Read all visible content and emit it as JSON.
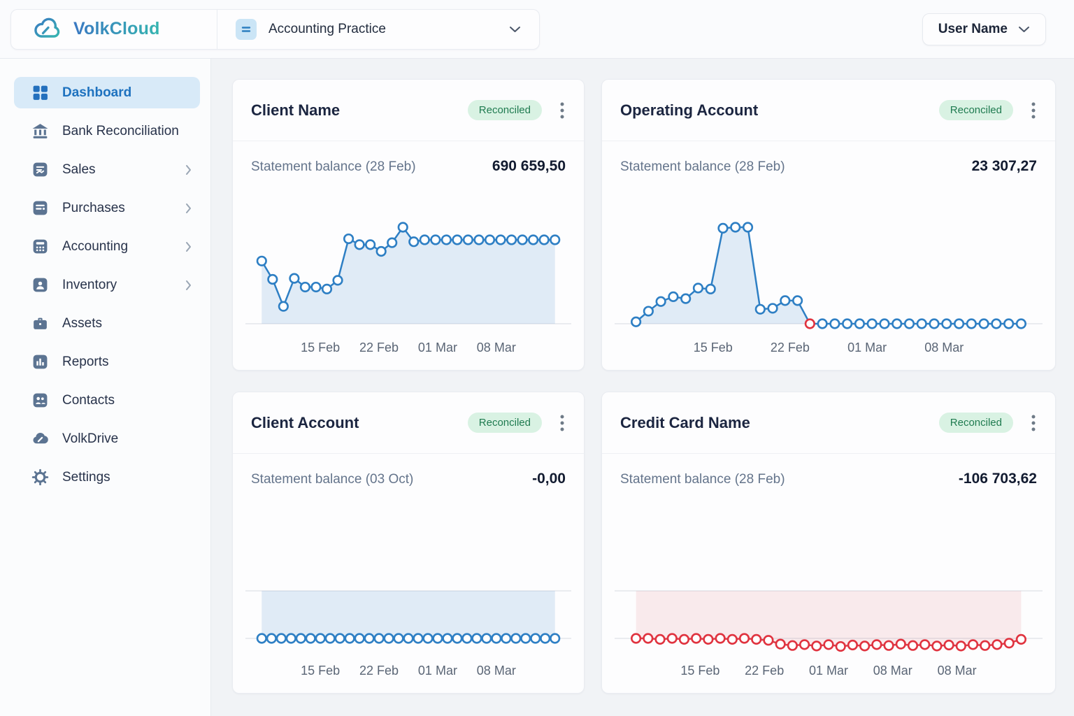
{
  "brand": {
    "name": "VolkCloud"
  },
  "header": {
    "practice_selector": {
      "label": "Accounting Practice"
    },
    "user_menu": {
      "label": "User Name"
    }
  },
  "sidebar": {
    "items": [
      {
        "label": "Dashboard",
        "icon": "dashboard",
        "active": true,
        "expandable": false
      },
      {
        "label": "Bank Reconciliation",
        "icon": "bank",
        "active": false,
        "expandable": false
      },
      {
        "label": "Sales",
        "icon": "sales",
        "active": false,
        "expandable": true
      },
      {
        "label": "Purchases",
        "icon": "purchases",
        "active": false,
        "expandable": true
      },
      {
        "label": "Accounting",
        "icon": "accounting",
        "active": false,
        "expandable": true
      },
      {
        "label": "Inventory",
        "icon": "inventory",
        "active": false,
        "expandable": true
      },
      {
        "label": "Assets",
        "icon": "assets",
        "active": false,
        "expandable": false
      },
      {
        "label": "Reports",
        "icon": "reports",
        "active": false,
        "expandable": false
      },
      {
        "label": "Contacts",
        "icon": "contacts",
        "active": false,
        "expandable": false
      },
      {
        "label": "VolkDrive",
        "icon": "volkdrive",
        "active": false,
        "expandable": false
      },
      {
        "label": "Settings",
        "icon": "settings",
        "active": false,
        "expandable": false
      }
    ]
  },
  "colors": {
    "accent_blue": "#1e72bf",
    "chart_blue": "#2e7fc4",
    "chart_blue_fill": "rgba(47,127,196,0.14)",
    "chart_red": "#dd3b48",
    "chart_red_fill": "rgba(216,64,76,0.10)",
    "badge_bg": "#d9f2e3",
    "badge_text": "#1f7b50",
    "axis_gray": "#e3e7ec"
  },
  "cards": [
    {
      "title": "Client Name",
      "badge": "Reconciled",
      "statement_label": "Statement balance (28 Feb)",
      "statement_value": "690 659,50",
      "chart": {
        "type": "line",
        "mode": "positive",
        "color": "#2e7fc4",
        "fill": "rgba(47,127,196,0.14)",
        "x_labels": [
          "15 Feb",
          "22 Feb",
          "01 Mar",
          "08 Mar"
        ],
        "values": [
          0.65,
          0.46,
          0.18,
          0.47,
          0.38,
          0.38,
          0.36,
          0.45,
          0.88,
          0.82,
          0.82,
          0.75,
          0.84,
          1.0,
          0.85,
          0.87,
          0.87,
          0.87,
          0.87,
          0.87,
          0.87,
          0.87,
          0.87,
          0.87,
          0.87,
          0.87,
          0.87,
          0.87
        ],
        "red_points": []
      }
    },
    {
      "title": "Operating Account",
      "badge": "Reconciled",
      "statement_label": "Statement balance (28 Feb)",
      "statement_value": "23 307,27",
      "chart": {
        "type": "line",
        "mode": "positive",
        "color": "#2e7fc4",
        "fill": "rgba(47,127,196,0.14)",
        "x_labels": [
          "15 Feb",
          "22 Feb",
          "01 Mar",
          "08 Mar"
        ],
        "values": [
          0.02,
          0.13,
          0.23,
          0.28,
          0.26,
          0.37,
          0.36,
          0.99,
          1.0,
          1.0,
          0.15,
          0.16,
          0.24,
          0.24,
          0,
          0,
          0,
          0,
          0,
          0,
          0,
          0,
          0,
          0,
          0,
          0,
          0,
          0,
          0,
          0,
          0,
          0
        ],
        "red_points": [
          14
        ]
      }
    },
    {
      "title": "Client Account",
      "badge": "Reconciled",
      "statement_label": "Statement balance (03 Oct)",
      "statement_value": "-0,00",
      "chart": {
        "type": "line",
        "mode": "negative",
        "color": "#2e7fc4",
        "fill": "rgba(47,127,196,0.14)",
        "x_labels": [
          "15 Feb",
          "22 Feb",
          "01 Mar",
          "08 Mar"
        ],
        "values": [
          -1,
          -1,
          -1,
          -1,
          -1,
          -1,
          -1,
          -1,
          -1,
          -1,
          -1,
          -1,
          -1,
          -1,
          -1,
          -1,
          -1,
          -1,
          -1,
          -1,
          -1,
          -1,
          -1,
          -1,
          -1,
          -1,
          -1,
          -1,
          -1,
          -1,
          -1
        ],
        "red_points": []
      }
    },
    {
      "title": "Credit Card Name",
      "badge": "Reconciled",
      "statement_label": "Statement balance (28 Feb)",
      "statement_value": "-106 703,62",
      "chart": {
        "type": "line",
        "mode": "negative",
        "color": "#dd3b48",
        "fill": "rgba(216,64,76,0.10)",
        "x_labels": [
          "15 Feb",
          "22 Feb",
          "01 Mar",
          "08 Mar",
          "08 Mar"
        ],
        "values": [
          -1,
          -1,
          -1.02,
          -1,
          -1.02,
          -1,
          -1.02,
          -1,
          -1.02,
          -1,
          -1.02,
          -1.04,
          -1.12,
          -1.15,
          -1.13,
          -1.16,
          -1.13,
          -1.17,
          -1.14,
          -1.16,
          -1.13,
          -1.15,
          -1.12,
          -1.15,
          -1.13,
          -1.16,
          -1.14,
          -1.16,
          -1.13,
          -1.15,
          -1.13,
          -1.1,
          -1.02
        ],
        "red_points": "all"
      }
    }
  ]
}
